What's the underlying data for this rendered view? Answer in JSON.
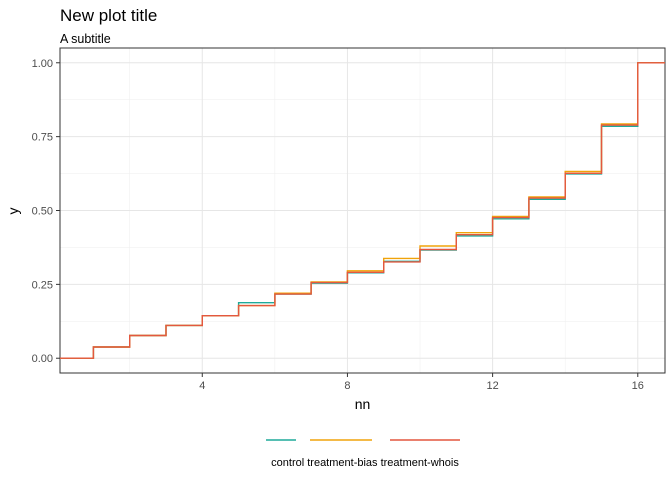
{
  "chart_data": {
    "type": "line",
    "step": true,
    "title": "New plot title",
    "subtitle": "A subtitle",
    "xlabel": "nn",
    "ylabel": "y",
    "xlim": [
      0.08,
      16.75
    ],
    "ylim": [
      -0.05,
      1.05
    ],
    "xticks": [
      4,
      8,
      12,
      16
    ],
    "xtick_labels": [
      "4",
      "8",
      "12",
      "16"
    ],
    "yticks": [
      0,
      0.25,
      0.5,
      0.75,
      1
    ],
    "ytick_labels": [
      "0.00",
      "0.25",
      "0.50",
      "0.75",
      "1.00"
    ],
    "grid": true,
    "legend_position": "bottom",
    "legend_text": "control treatment-bias treatment-whois",
    "x": [
      0.08,
      1,
      2,
      3,
      4,
      5,
      6,
      7,
      8,
      9,
      10,
      11,
      12,
      13,
      14,
      15,
      16
    ],
    "series": [
      {
        "color": "#1faa9a",
        "values": [
          0,
          0.038,
          0.077,
          0.111,
          0.144,
          0.188,
          0.217,
          0.254,
          0.289,
          0.328,
          0.366,
          0.414,
          0.472,
          0.538,
          0.624,
          0.785,
          1.0
        ]
      },
      {
        "color": "#f0a30a",
        "values": [
          0,
          0.038,
          0.077,
          0.111,
          0.144,
          0.178,
          0.22,
          0.258,
          0.296,
          0.338,
          0.38,
          0.425,
          0.48,
          0.546,
          0.632,
          0.793,
          1.0
        ]
      },
      {
        "color": "#e4573f",
        "values": [
          0,
          0.038,
          0.077,
          0.111,
          0.144,
          0.178,
          0.217,
          0.256,
          0.291,
          0.326,
          0.368,
          0.418,
          0.476,
          0.542,
          0.626,
          0.789,
          1.0
        ]
      }
    ]
  }
}
